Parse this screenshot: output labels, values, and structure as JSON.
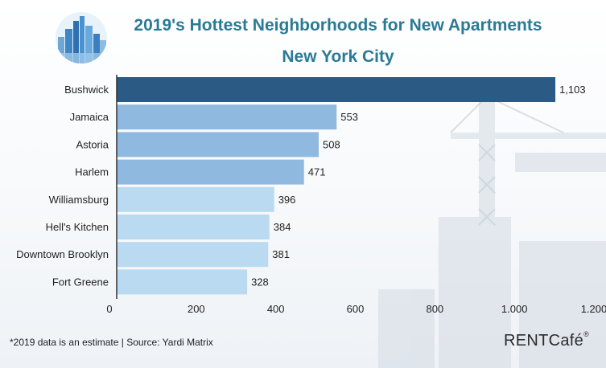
{
  "header": {
    "title": "2019's Hottest Neighborhoods for New Apartments",
    "subtitle": "New York City"
  },
  "footer": {
    "note": "*2019 data is an estimate | Source: Yardi Matrix",
    "brand": "RENTCafé",
    "brand_mark": "®"
  },
  "colors": {
    "title": "#2a7a96",
    "bar_highlight": "#2b5a85",
    "bar_mid": "#8fb9de",
    "bar_light": "#b9daf0"
  },
  "chart_data": {
    "type": "bar",
    "orientation": "horizontal",
    "title": "2019's Hottest Neighborhoods for New Apartments",
    "subtitle": "New York City",
    "categories": [
      "Bushwick",
      "Jamaica",
      "Astoria",
      "Harlem",
      "Williamsburg",
      "Hell's Kitchen",
      "Downtown Brooklyn",
      "Fort Greene"
    ],
    "values": [
      1103,
      553,
      508,
      471,
      396,
      384,
      381,
      328
    ],
    "value_labels": [
      "1,103",
      "553",
      "508",
      "471",
      "396",
      "384",
      "381",
      "328"
    ],
    "xticks": [
      0,
      200,
      400,
      600,
      800,
      1000,
      1200
    ],
    "xtick_labels": [
      "0",
      "200",
      "400",
      "600",
      "800",
      "1.000",
      "1.200"
    ],
    "xlim": [
      0,
      1200
    ],
    "grid": false,
    "legend": "none"
  }
}
